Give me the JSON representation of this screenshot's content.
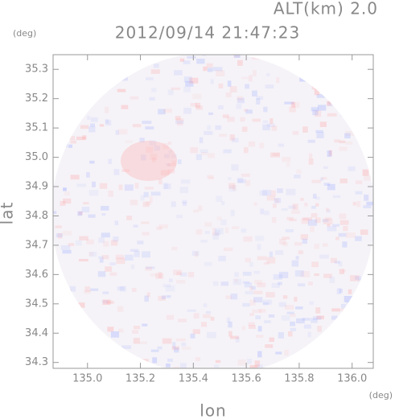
{
  "chart_data": {
    "type": "radar-map",
    "title": "2012/09/14 21:47:23",
    "subtitle": "ALT(km) 2.0",
    "x_label": "lon",
    "y_label": "lat",
    "x_unit": "(deg)",
    "y_unit": "(deg)",
    "xlim": [
      134.87,
      136.08
    ],
    "ylim": [
      34.28,
      35.35
    ],
    "xticks": [
      {
        "value": 135,
        "label": "135.0"
      },
      135.2,
      135.4,
      135.6,
      135.8,
      {
        "value": 136,
        "label": "136.0"
      }
    ],
    "yticks": [
      34.3,
      34.4,
      34.5,
      34.6,
      34.7,
      34.8,
      34.9,
      {
        "value": 35,
        "label": "35.0"
      },
      35.1,
      35.2,
      35.3
    ]
  }
}
